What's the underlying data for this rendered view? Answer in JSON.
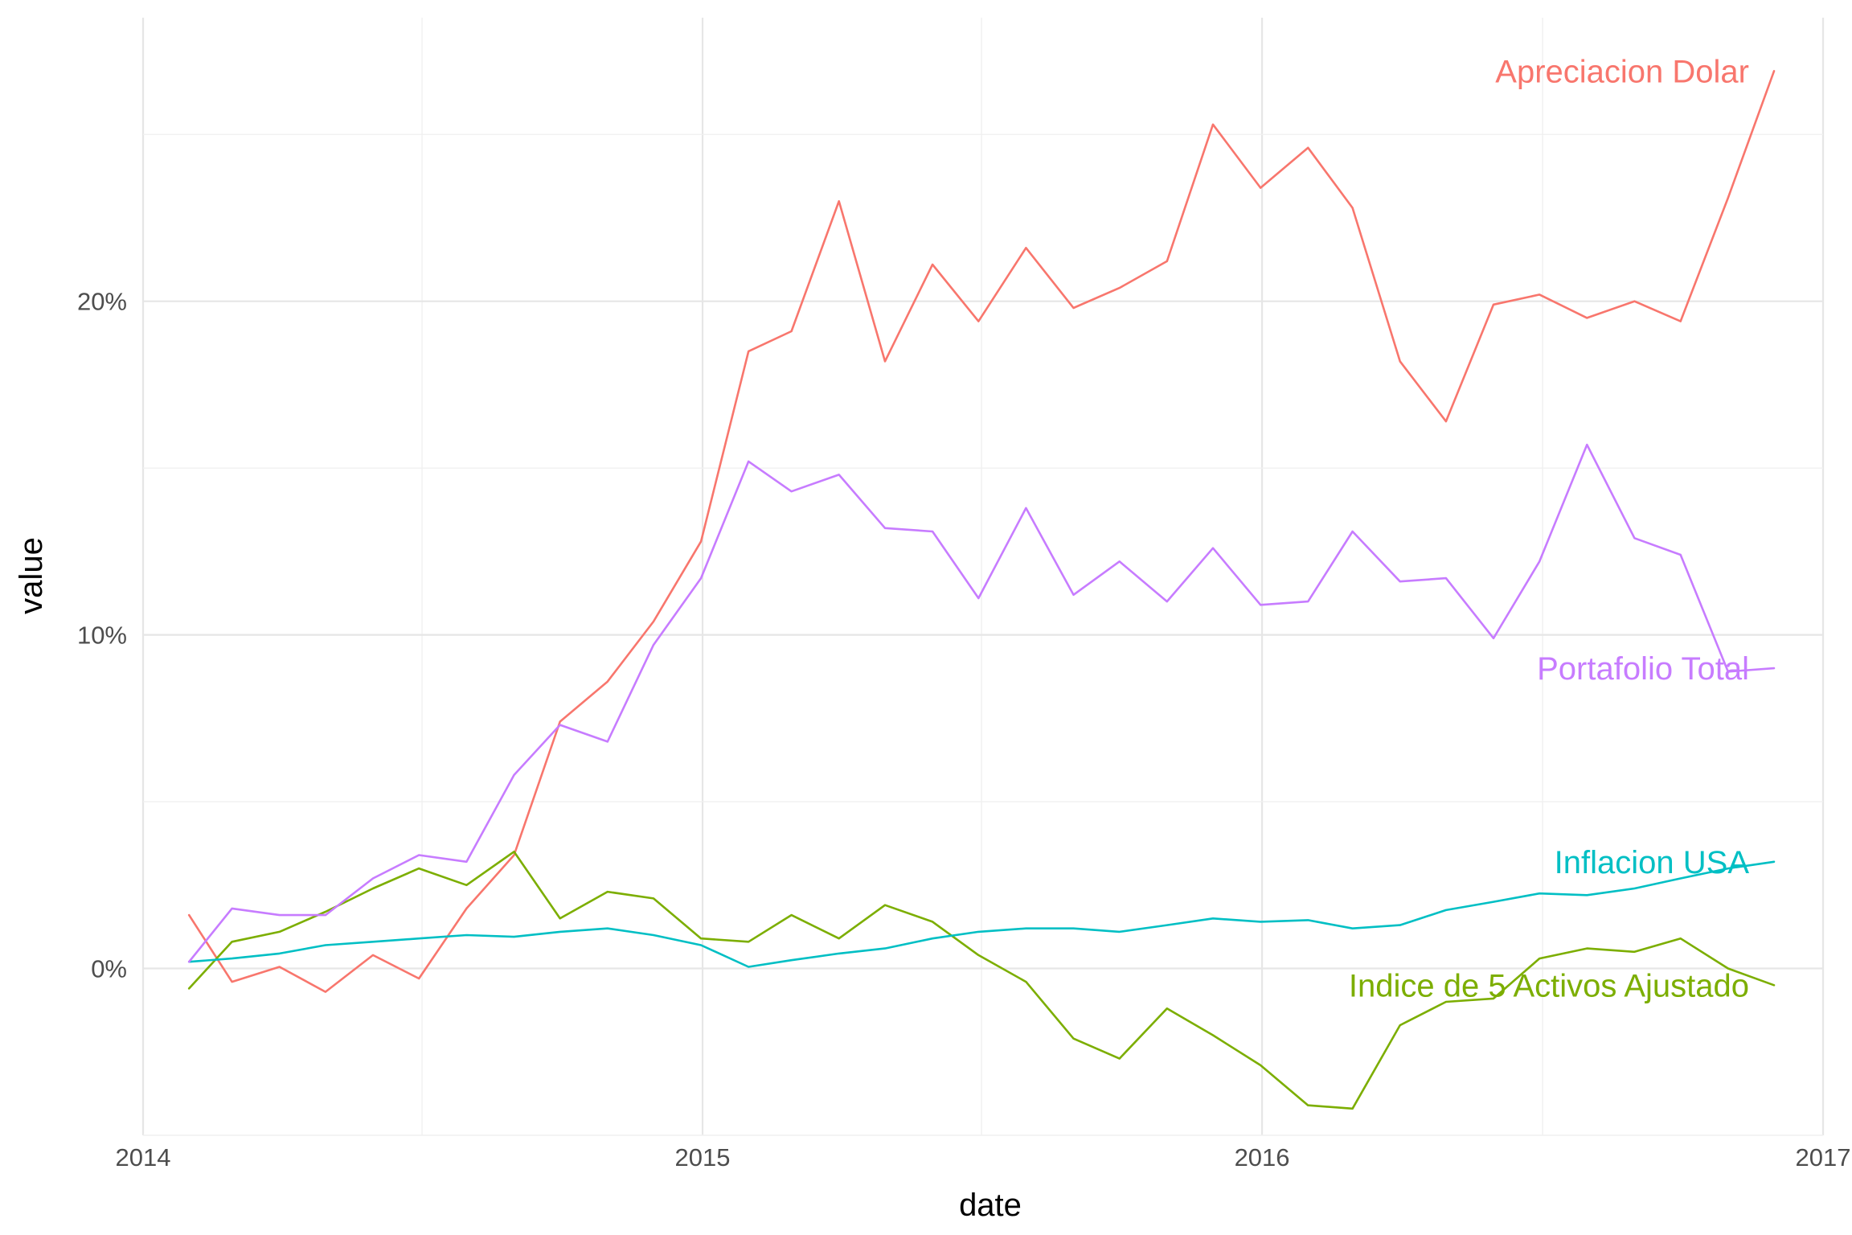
{
  "chart_data": {
    "type": "line",
    "xlabel": "date",
    "ylabel": "value",
    "x_ticks": [
      "2014",
      "2015",
      "2016",
      "2017"
    ],
    "y_ticks": [
      "0%",
      "10%",
      "20%"
    ],
    "xlim": [
      "2014-01-01",
      "2017-01-01"
    ],
    "ylim": [
      -0.05,
      0.285
    ],
    "grid": true,
    "legend": "direct labels at right end of lines",
    "x": [
      "2014-01-31",
      "2014-02-28",
      "2014-03-31",
      "2014-04-30",
      "2014-05-31",
      "2014-06-30",
      "2014-07-31",
      "2014-08-31",
      "2014-09-30",
      "2014-10-31",
      "2014-11-30",
      "2014-12-31",
      "2015-01-31",
      "2015-02-28",
      "2015-03-31",
      "2015-04-30",
      "2015-05-31",
      "2015-06-30",
      "2015-07-31",
      "2015-08-31",
      "2015-09-30",
      "2015-10-31",
      "2015-11-30",
      "2015-12-31",
      "2016-01-31",
      "2016-02-29",
      "2016-03-31",
      "2016-04-30",
      "2016-05-31",
      "2016-06-30",
      "2016-07-31",
      "2016-08-31",
      "2016-09-30",
      "2016-10-31",
      "2016-11-30"
    ],
    "series": [
      {
        "name": "Apreciacion Dolar",
        "color": "#F8766D",
        "values": [
          0.016,
          -0.004,
          0.0005,
          -0.007,
          0.004,
          -0.003,
          0.018,
          0.034,
          0.074,
          0.086,
          0.104,
          0.128,
          0.185,
          0.191,
          0.23,
          0.182,
          0.211,
          0.194,
          0.216,
          0.198,
          0.204,
          0.212,
          0.253,
          0.234,
          0.246,
          0.228,
          0.182,
          0.164,
          0.199,
          0.202,
          0.195,
          0.2,
          0.194,
          0.231,
          0.269
        ]
      },
      {
        "name": "Indice de 5 Activos Ajustado",
        "color": "#7CAE00",
        "values": [
          -0.006,
          0.008,
          0.011,
          0.017,
          0.024,
          0.03,
          0.025,
          0.035,
          0.015,
          0.023,
          0.021,
          0.009,
          0.008,
          0.016,
          0.009,
          0.019,
          0.014,
          0.004,
          -0.004,
          -0.021,
          -0.027,
          -0.012,
          -0.02,
          -0.029,
          -0.041,
          -0.042,
          -0.017,
          -0.01,
          -0.009,
          0.003,
          0.006,
          0.005,
          0.009,
          0.0,
          -0.005
        ]
      },
      {
        "name": "Inflacion USA",
        "color": "#00BFC4",
        "values": [
          0.002,
          0.003,
          0.0045,
          0.007,
          0.008,
          0.009,
          0.01,
          0.0095,
          0.011,
          0.012,
          0.01,
          0.007,
          0.0005,
          0.0025,
          0.0045,
          0.006,
          0.009,
          0.011,
          0.012,
          0.012,
          0.011,
          0.013,
          0.015,
          0.014,
          0.0145,
          0.012,
          0.013,
          0.0175,
          0.02,
          0.0225,
          0.022,
          0.024,
          0.027,
          0.03,
          0.032
        ]
      },
      {
        "name": "Portafolio Total",
        "color": "#C77CFF",
        "values": [
          0.002,
          0.018,
          0.016,
          0.016,
          0.027,
          0.034,
          0.032,
          0.058,
          0.073,
          0.068,
          0.097,
          0.117,
          0.152,
          0.143,
          0.148,
          0.132,
          0.131,
          0.111,
          0.138,
          0.112,
          0.122,
          0.11,
          0.126,
          0.109,
          0.11,
          0.131,
          0.116,
          0.117,
          0.099,
          0.122,
          0.157,
          0.129,
          0.124,
          0.089,
          0.09
        ]
      }
    ]
  }
}
